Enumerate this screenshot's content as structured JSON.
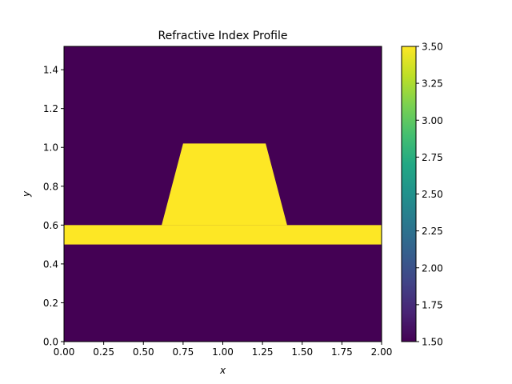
{
  "chart_data": {
    "type": "heatmap",
    "title": "Refractive Index Profile",
    "xlabel": "x",
    "ylabel": "y",
    "xlim": [
      0,
      2.0
    ],
    "ylim": [
      0,
      1.52
    ],
    "xticks": [
      0.0,
      0.25,
      0.5,
      0.75,
      1.0,
      1.25,
      1.5,
      1.75,
      2.0
    ],
    "xtick_labels": [
      "0.00",
      "0.25",
      "0.50",
      "0.75",
      "1.00",
      "1.25",
      "1.50",
      "1.75",
      "2.00"
    ],
    "yticks": [
      0.0,
      0.2,
      0.4,
      0.6,
      0.8,
      1.0,
      1.2,
      1.4
    ],
    "ytick_labels": [
      "0.0",
      "0.2",
      "0.4",
      "0.6",
      "0.8",
      "1.0",
      "1.2",
      "1.4"
    ],
    "colormap": "viridis",
    "background_index": 1.5,
    "core_index": 3.5,
    "colorbar": {
      "range": [
        1.5,
        3.5
      ],
      "ticks": [
        1.5,
        1.75,
        2.0,
        2.25,
        2.5,
        2.75,
        3.0,
        3.25,
        3.5
      ],
      "tick_labels": [
        "1.50",
        "1.75",
        "2.00",
        "2.25",
        "2.50",
        "2.75",
        "3.00",
        "3.25",
        "3.50"
      ]
    },
    "slab": {
      "x": [
        0.0,
        2.0
      ],
      "y": [
        0.5,
        0.6
      ]
    },
    "ridge": {
      "x_bottom": [
        0.615,
        1.405
      ],
      "x_top": [
        0.75,
        1.27
      ],
      "y": [
        0.6,
        1.02
      ]
    },
    "colors": {
      "low": "#440154",
      "high": "#fde725"
    }
  }
}
